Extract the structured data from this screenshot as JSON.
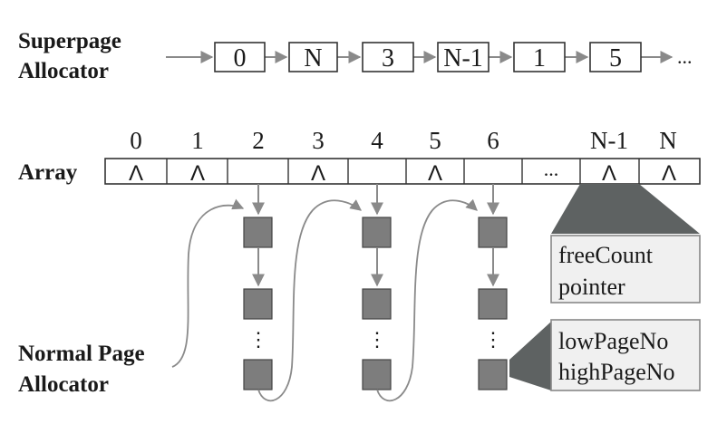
{
  "labels": {
    "superpage_line1": "Superpage",
    "superpage_line2": "Allocator",
    "array": "Array",
    "normal_line1": "Normal Page",
    "normal_line2": "Allocator"
  },
  "superpage_chain": [
    "0",
    "N",
    "3",
    "N-1",
    "1",
    "5"
  ],
  "superpage_tail": "...",
  "array_indices": [
    "0",
    "1",
    "2",
    "3",
    "4",
    "5",
    "6",
    "N-1",
    "N"
  ],
  "array_cells": [
    "Λ",
    "Λ",
    "",
    "Λ",
    "",
    "Λ",
    "",
    "...",
    "Λ",
    "Λ"
  ],
  "page_list_ellipsis": "⋮",
  "callouts": {
    "free_count": "freeCount",
    "pointer": "pointer",
    "low_page_no": "lowPageNo",
    "high_page_no": "highPageNo"
  }
}
